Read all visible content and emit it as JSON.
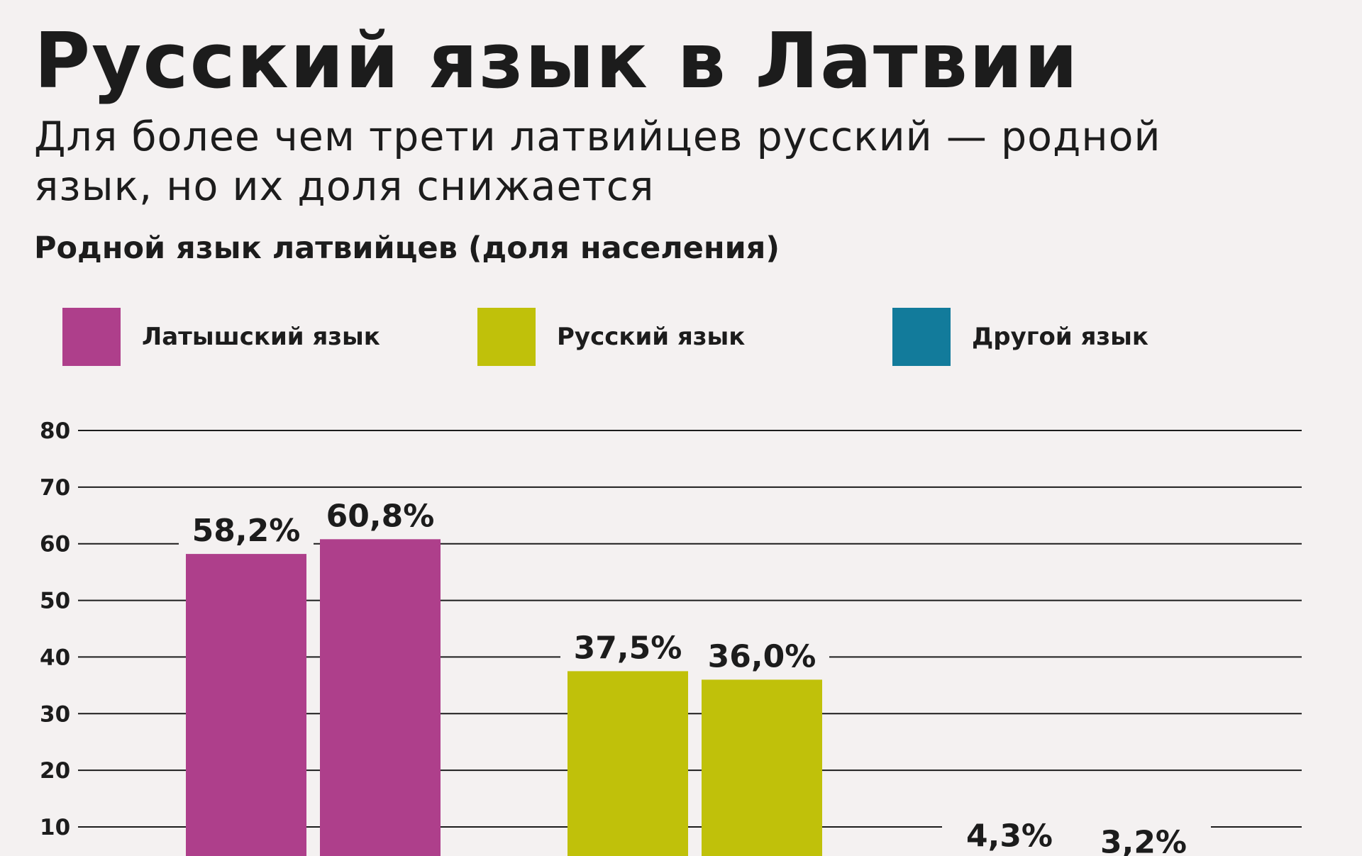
{
  "header": {
    "title": "Русский язык в Латвии",
    "subtitle": "Для более чем трети латвийцев русский — родной язык, но их доля снижается",
    "chart_label": "Родной язык латвийцев (доля населения)"
  },
  "legend": [
    {
      "label": "Латышский язык",
      "color": "#ae3f8b"
    },
    {
      "label": "Русский язык",
      "color": "#c0c10a"
    },
    {
      "label": "Другой язык",
      "color": "#127b9b"
    }
  ],
  "chart_data": {
    "type": "bar",
    "title": "Русский язык в Латвии",
    "subtitle": "Для более чем трети латвийцев русский — родной язык, но их доля снижается",
    "ylabel": "Родной язык латвийцев (доля населения)",
    "ylim": [
      0,
      80
    ],
    "yticks": [
      10,
      20,
      30,
      40,
      50,
      60,
      70,
      80
    ],
    "grid": true,
    "legend_position": "top",
    "groups": [
      {
        "name": "Латышский язык",
        "color": "#ae3f8b",
        "values": [
          58.2,
          60.8
        ],
        "labels": [
          "58,2%",
          "60,8%"
        ]
      },
      {
        "name": "Русский язык",
        "color": "#c0c10a",
        "values": [
          37.5,
          36.0
        ],
        "labels": [
          "37,5%",
          "36,0%"
        ]
      },
      {
        "name": "Другой язык",
        "color": "#127b9b",
        "values": [
          4.3,
          3.2
        ],
        "labels": [
          "4,3%",
          "3,2%"
        ]
      }
    ]
  }
}
